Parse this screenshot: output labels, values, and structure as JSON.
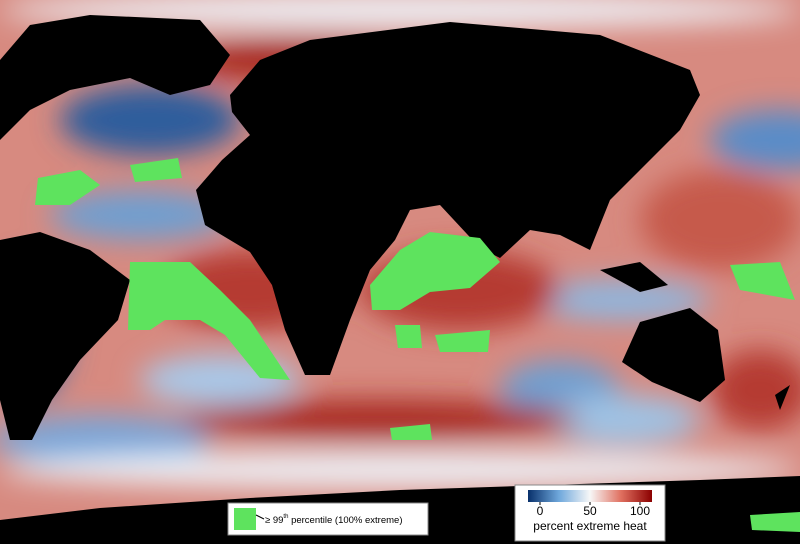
{
  "legend": {
    "prefix": "≥ 99",
    "sup": "th",
    "suffix": " percentile (100% extreme)"
  },
  "colorbar": {
    "ticks": [
      0,
      50,
      100
    ],
    "title": "percent extreme heat"
  }
}
